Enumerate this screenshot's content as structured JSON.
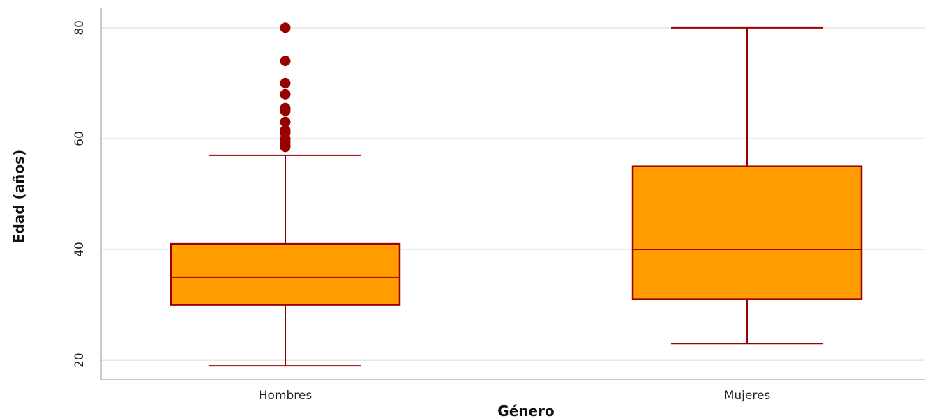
{
  "chart_data": {
    "type": "boxplot",
    "title": "",
    "xlabel": "Género",
    "ylabel": "Edad (años)",
    "categories": [
      "Hombres",
      "Mujeres"
    ],
    "ylim": [
      16.5,
      83.5
    ],
    "yticks": [
      20,
      40,
      60,
      80
    ],
    "grid": "horizontal",
    "colors": {
      "box_fill": "#ff9d00",
      "box_stroke": "#990000",
      "outlier": "#990000"
    },
    "boxes": [
      {
        "category": "Hombres",
        "whisker_low": 19,
        "q1": 30,
        "median": 35,
        "q3": 41,
        "whisker_high": 57,
        "outliers": [
          58.5,
          59,
          59.5,
          60,
          61,
          61.5,
          63,
          65,
          65.5,
          68,
          70,
          74,
          80
        ]
      },
      {
        "category": "Mujeres",
        "whisker_low": 23,
        "q1": 31,
        "median": 40,
        "q3": 55,
        "whisker_high": 80,
        "outliers": []
      }
    ]
  }
}
